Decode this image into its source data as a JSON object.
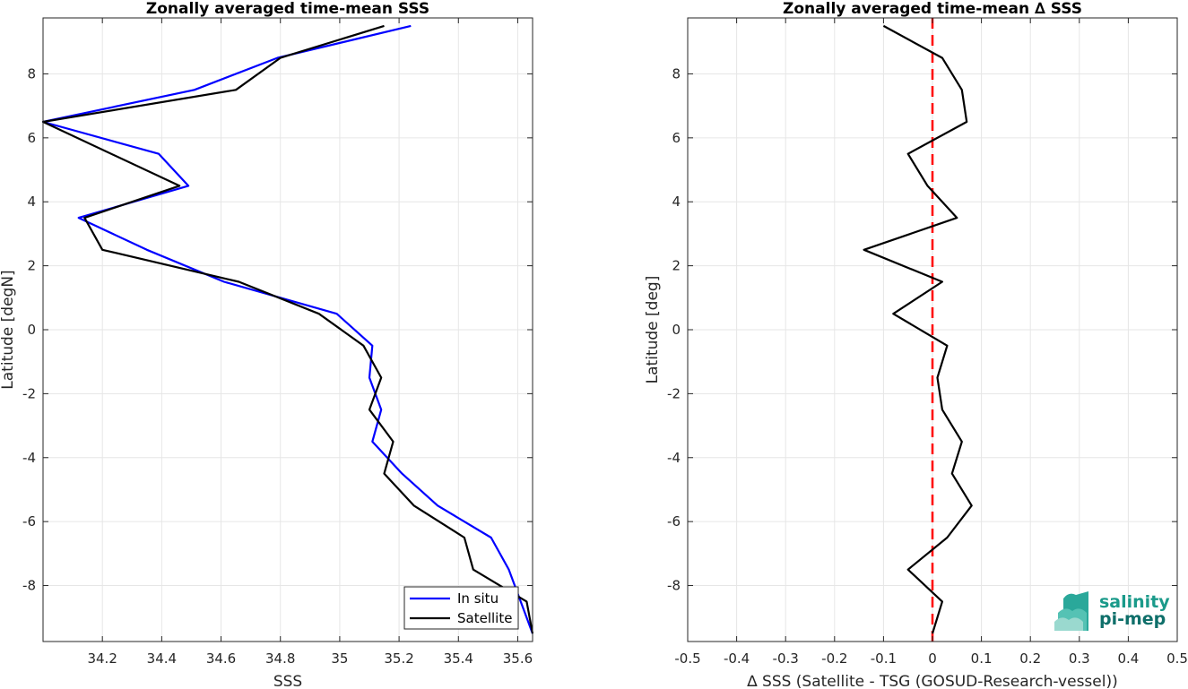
{
  "chart_data": [
    {
      "type": "line",
      "title": "Zonally averaged time-mean SSS",
      "xlabel": "SSS",
      "ylabel": "Latitude [degN]",
      "xlim": [
        34.0,
        35.65
      ],
      "ylim": [
        -9.75,
        9.75
      ],
      "xticks": [
        "34.2",
        "34.4",
        "34.6",
        "34.8",
        "35",
        "35.2",
        "35.4",
        "35.6"
      ],
      "yticks": [
        "8",
        "6",
        "4",
        "2",
        "0",
        "-2",
        "-4",
        "-6",
        "-8"
      ],
      "grid": true,
      "legend": "bottom-right",
      "colors": {
        "in_situ": "#0000ff",
        "satellite": "#000000"
      },
      "series": [
        {
          "name": "In situ",
          "x": [
            35.24,
            34.79,
            34.51,
            34.0,
            34.39,
            34.49,
            34.12,
            34.35,
            34.61,
            34.99,
            35.11,
            35.1,
            35.14,
            35.11,
            35.21,
            35.33,
            35.51,
            35.57,
            35.65
          ],
          "y": [
            9.5,
            8.5,
            7.5,
            6.5,
            5.5,
            4.5,
            3.5,
            2.5,
            1.5,
            0.5,
            -0.5,
            -1.5,
            -2.5,
            -3.5,
            -4.5,
            -5.5,
            -6.5,
            -7.5,
            -9.5
          ]
        },
        {
          "name": "Satellite",
          "x": [
            35.15,
            34.8,
            34.65,
            34.0,
            34.46,
            34.14,
            34.2,
            34.66,
            34.93,
            35.08,
            35.14,
            35.1,
            35.18,
            35.15,
            35.25,
            35.42,
            35.45,
            35.63,
            35.65
          ],
          "y": [
            9.5,
            8.5,
            7.5,
            6.5,
            4.5,
            3.5,
            2.5,
            1.5,
            0.5,
            -0.5,
            -1.5,
            -2.5,
            -3.5,
            -4.5,
            -5.5,
            -6.5,
            -7.5,
            -8.5,
            -9.5
          ]
        }
      ]
    },
    {
      "type": "line",
      "title": "Zonally averaged time-mean ∆ SSS",
      "xlabel": "∆ SSS (Satellite - TSG (GOSUD-Research-vessel))",
      "ylabel": "Latitude [deg]",
      "xlim": [
        -0.5,
        0.5
      ],
      "ylim": [
        -9.75,
        9.75
      ],
      "xticks": [
        "-0.5",
        "-0.4",
        "-0.3",
        "-0.2",
        "-0.1",
        "0",
        "0.1",
        "0.2",
        "0.3",
        "0.4",
        "0.5"
      ],
      "yticks": [
        "8",
        "6",
        "4",
        "2",
        "0",
        "-2",
        "-4",
        "-6",
        "-8"
      ],
      "grid": true,
      "reference_line": {
        "x": 0,
        "color": "#ff0000",
        "style": "dashed"
      },
      "series": [
        {
          "x": [
            -0.1,
            0.02,
            0.06,
            0.07,
            -0.05,
            -0.01,
            0.05,
            -0.14,
            0.02,
            -0.08,
            0.03,
            0.01,
            0.02,
            0.06,
            0.04,
            0.08,
            0.03,
            -0.05,
            0.02,
            0.0
          ],
          "y": [
            9.5,
            8.5,
            7.5,
            6.5,
            5.5,
            4.5,
            3.5,
            2.5,
            1.5,
            0.5,
            -0.5,
            -1.5,
            -2.5,
            -3.5,
            -4.5,
            -5.5,
            -6.5,
            -7.5,
            -8.5,
            -9.5
          ]
        }
      ]
    }
  ],
  "logo": {
    "line1": "salinity",
    "line2": "pi-mep",
    "color": "#1a9a8a"
  }
}
